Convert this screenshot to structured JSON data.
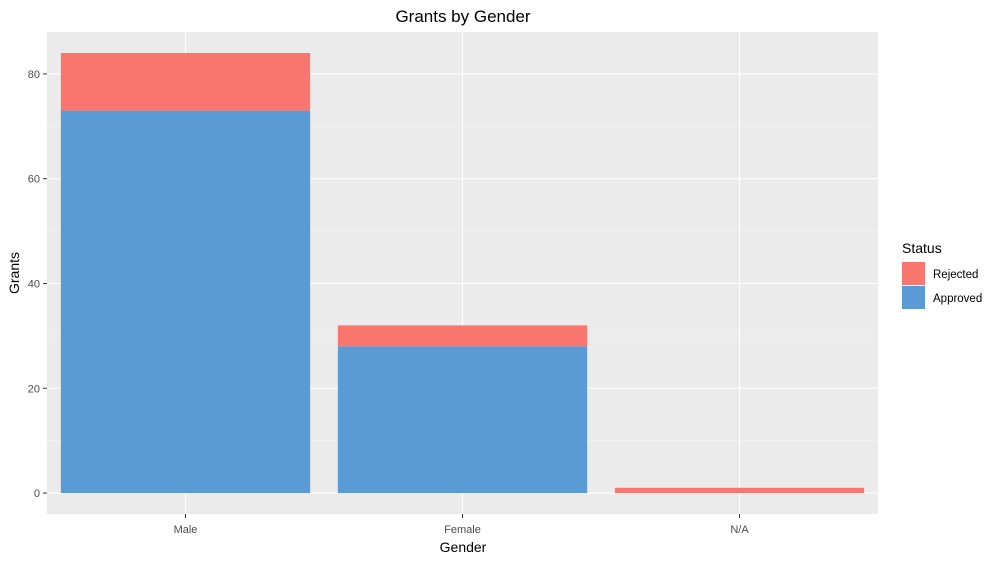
{
  "chart_data": {
    "type": "bar",
    "stacked": true,
    "title": "Grants by Gender",
    "xlabel": "Gender",
    "ylabel": "Grants",
    "categories": [
      "Male",
      "Female",
      "N/A"
    ],
    "series": [
      {
        "name": "Approved",
        "color": "#5B9BD5",
        "values": [
          73,
          28,
          0
        ]
      },
      {
        "name": "Rejected",
        "color": "#F8766D",
        "values": [
          11,
          4,
          1
        ]
      }
    ],
    "ylim": [
      -4,
      88
    ],
    "yticks": [
      0,
      20,
      40,
      60,
      80
    ],
    "grid": true,
    "legend": {
      "title": "Status",
      "placement": "right",
      "entries": [
        "Rejected",
        "Approved"
      ]
    },
    "colors": {
      "panel_background": "#EBEBEB",
      "grid_major": "#FFFFFF",
      "grid_minor": "#F5F5F5"
    }
  }
}
